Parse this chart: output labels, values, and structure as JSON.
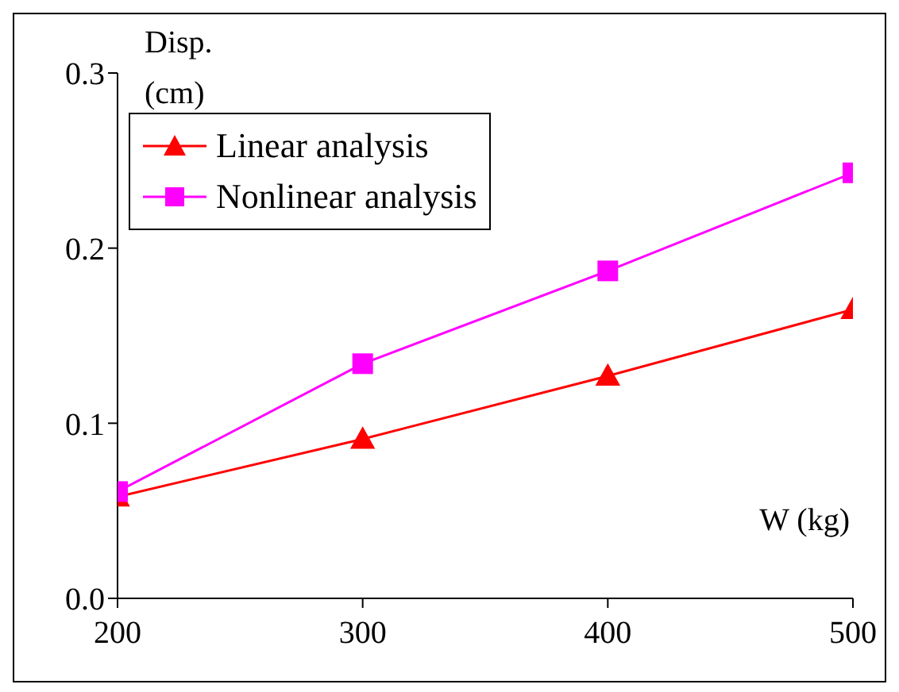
{
  "chart_data": {
    "type": "line",
    "xlabel": "W (kg)",
    "ylabel": "Disp. (cm)",
    "x": [
      200,
      300,
      400,
      500
    ],
    "series": [
      {
        "name": "Linear analysis",
        "color": "#ff0000",
        "marker": "triangle",
        "values": [
          0.058,
          0.091,
          0.127,
          0.165
        ]
      },
      {
        "name": "Nonlinear analysis",
        "color": "#ff00ff",
        "marker": "square",
        "values": [
          0.061,
          0.134,
          0.187,
          0.243
        ]
      }
    ],
    "xlim": [
      200,
      500
    ],
    "xticks": [
      200,
      300,
      400,
      500
    ],
    "ylim": [
      0,
      0.3
    ],
    "yticks": [
      {
        "value": 0,
        "label": "0.0"
      },
      0.1,
      0.2,
      0.3
    ],
    "grid": false,
    "legend": "top left"
  }
}
